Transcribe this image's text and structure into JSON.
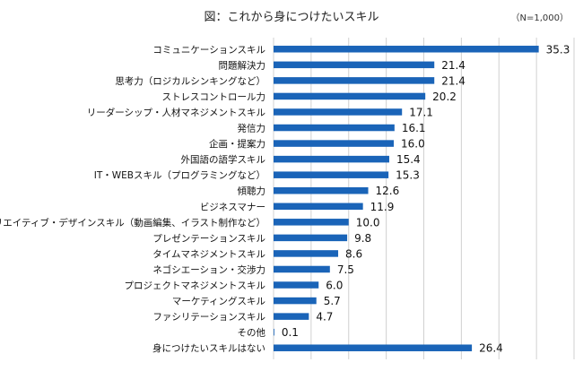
{
  "chart_data": {
    "type": "bar",
    "orientation": "horizontal",
    "title": "図：これから身につけたいスキル",
    "note": "（N=1,000）",
    "xlim": [
      0,
      40
    ],
    "grid": true,
    "bar_color": "#1a64b8",
    "grid_color": "#d0d0d0",
    "categories": [
      "コミュニケーションスキル",
      "問題解決力",
      "思考力（ロジカルシンキングなど）",
      "ストレスコントロール力",
      "リーダーシップ・人材マネジメントスキル",
      "発信力",
      "企画・提案力",
      "外国語の語学スキル",
      "IT・WEBスキル（プログラミングなど）",
      "傾聴力",
      "ビジネスマナー",
      "クリエイティブ・デザインスキル（動画編集、イラスト制作など）",
      "プレゼンテーションスキル",
      "タイムマネジメントスキル",
      "ネゴシエーション・交渉力",
      "プロジェクトマネジメントスキル",
      "マーケティングスキル",
      "ファシリテーションスキル",
      "その他",
      "身につけたいスキルはない"
    ],
    "values": [
      35.3,
      21.4,
      21.4,
      20.2,
      17.1,
      16.1,
      16.0,
      15.4,
      15.3,
      12.6,
      11.9,
      10.0,
      9.8,
      8.6,
      7.5,
      6.0,
      5.7,
      4.7,
      0.1,
      26.4
    ],
    "value_labels": [
      "35.3",
      "21.4",
      "21.4",
      "20.2",
      "17.1",
      "16.1",
      "16.0",
      "15.4",
      "15.3",
      "12.6",
      "11.9",
      "10.0",
      "9.8",
      "8.6",
      "7.5",
      "6.0",
      "5.7",
      "4.7",
      "0.1",
      "26.4"
    ]
  }
}
